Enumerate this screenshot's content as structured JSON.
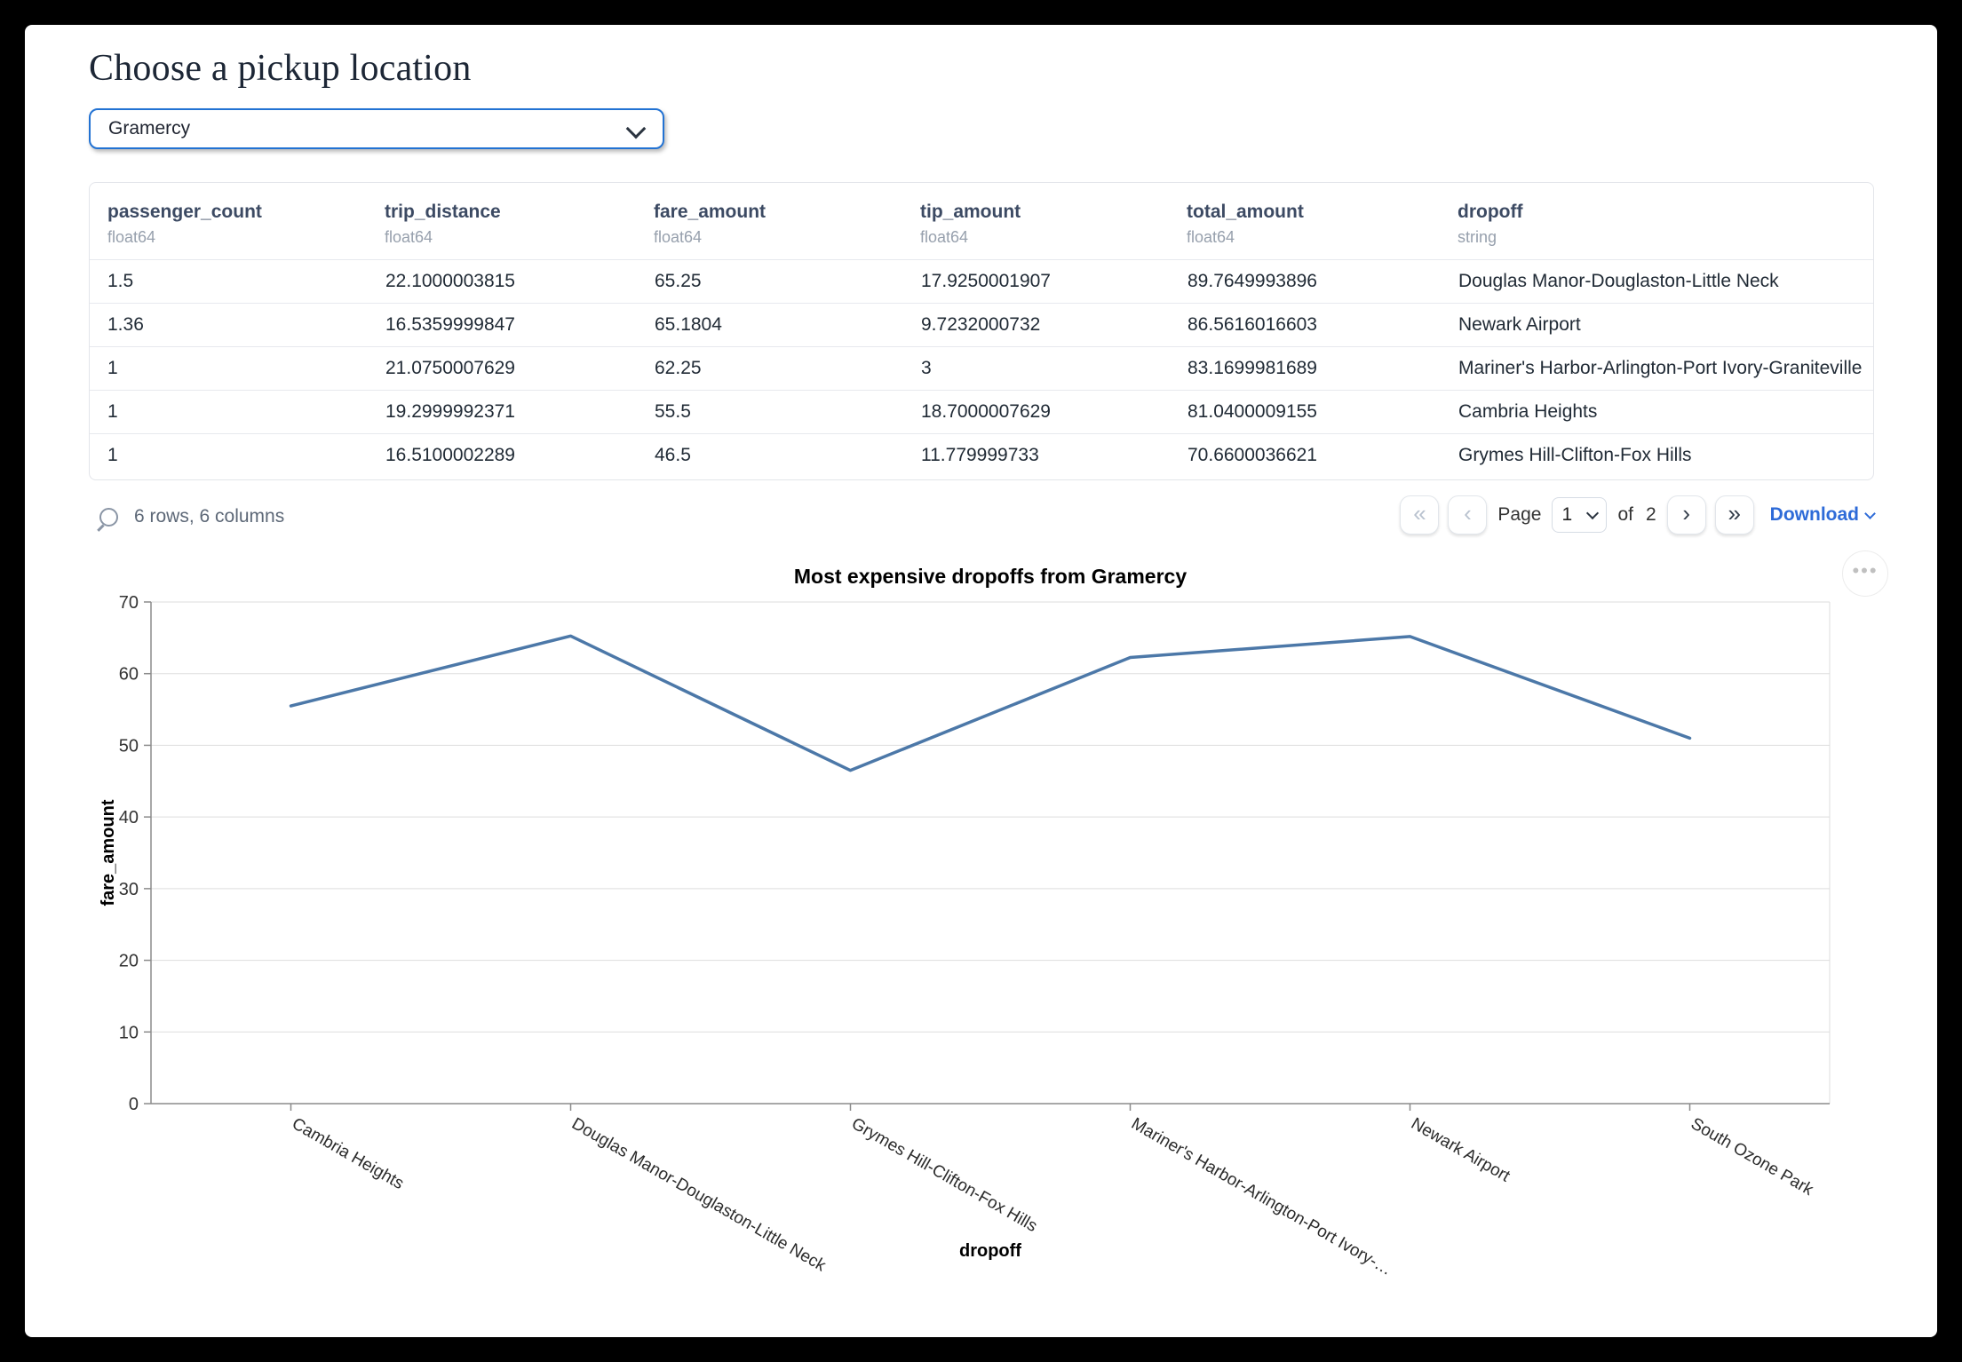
{
  "header": {
    "title": "Choose a pickup location"
  },
  "pickup_select": {
    "value": "Gramercy"
  },
  "table": {
    "columns": [
      {
        "name": "passenger_count",
        "type": "float64"
      },
      {
        "name": "trip_distance",
        "type": "float64"
      },
      {
        "name": "fare_amount",
        "type": "float64"
      },
      {
        "name": "tip_amount",
        "type": "float64"
      },
      {
        "name": "total_amount",
        "type": "float64"
      },
      {
        "name": "dropoff",
        "type": "string"
      }
    ],
    "rows": [
      [
        "1.5",
        "22.1000003815",
        "65.25",
        "17.9250001907",
        "89.7649993896",
        "Douglas Manor-Douglaston-Little Neck"
      ],
      [
        "1.36",
        "16.5359999847",
        "65.1804",
        "9.7232000732",
        "86.5616016603",
        "Newark Airport"
      ],
      [
        "1",
        "21.0750007629",
        "62.25",
        "3",
        "83.1699981689",
        "Mariner's Harbor-Arlington-Port Ivory-Graniteville"
      ],
      [
        "1",
        "19.2999992371",
        "55.5",
        "18.7000007629",
        "81.0400009155",
        "Cambria Heights"
      ],
      [
        "1",
        "16.5100002289",
        "46.5",
        "11.779999733",
        "70.6600036621",
        "Grymes Hill-Clifton-Fox Hills"
      ]
    ]
  },
  "table_footer": {
    "summary": "6 rows, 6 columns",
    "pagination": {
      "first": "«",
      "prev": "‹",
      "page_label": "Page",
      "current_page": "1",
      "of_label": "of",
      "total_pages": "2",
      "next": "›",
      "last": "»"
    },
    "download_label": "Download"
  },
  "chart_data": {
    "type": "line",
    "title": "Most expensive dropoffs from Gramercy",
    "xlabel": "dropoff",
    "ylabel": "fare_amount",
    "categories": [
      "Cambria Heights",
      "Douglas Manor-Douglaston-Little Neck",
      "Grymes Hill-Clifton-Fox Hills",
      "Mariner's Harbor-Arlington-Port Ivory-Graniteville",
      "Newark Airport",
      "South Ozone Park"
    ],
    "x_tick_labels": [
      "Cambria Heights",
      "Douglas Manor-Douglaston-Little Neck",
      "Grymes Hill-Clifton-Fox Hills",
      "Mariner's Harbor-Arlington-Port Ivory-…",
      "Newark Airport",
      "South Ozone Park"
    ],
    "values": [
      55.5,
      65.25,
      46.5,
      62.25,
      65.1804,
      51
    ],
    "ylim": [
      0,
      70
    ],
    "yticks": [
      0,
      10,
      20,
      30,
      40,
      50,
      60,
      70
    ],
    "grid": true,
    "legend": "none",
    "line_color": "#4c78a8",
    "grid_color": "#dddddd",
    "axis_color": "#8b8b8b"
  },
  "icons": {
    "more_options": "•••"
  }
}
